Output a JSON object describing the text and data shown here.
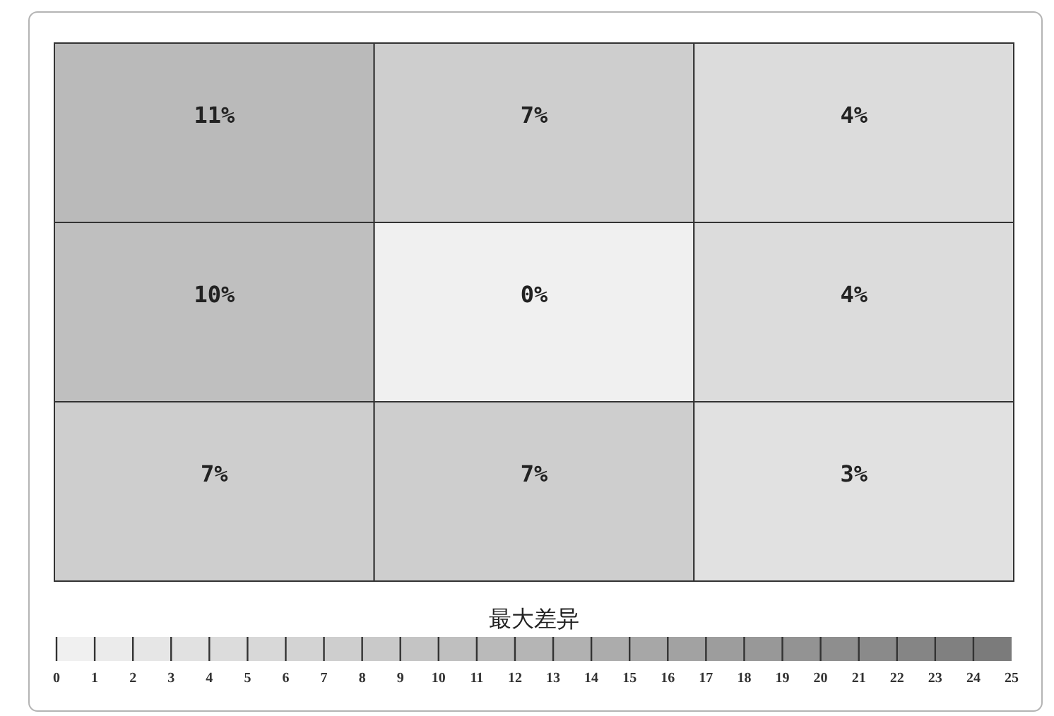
{
  "chart_data": {
    "type": "heatmap",
    "categories": [
      null,
      null,
      null
    ],
    "y_categories": [
      null,
      null,
      null
    ],
    "cells": [
      [
        11,
        7,
        4
      ],
      [
        10,
        0,
        4
      ],
      [
        7,
        7,
        3
      ]
    ],
    "cell_labels": [
      [
        "11%",
        "7%",
        "4%"
      ],
      [
        "10%",
        "0%",
        "4%"
      ],
      [
        "7%",
        "7%",
        "3%"
      ]
    ],
    "clabel": "最大差异",
    "clim": [
      0,
      25
    ],
    "cticks": [
      0,
      1,
      2,
      3,
      4,
      5,
      6,
      7,
      8,
      9,
      10,
      11,
      12,
      13,
      14,
      15,
      16,
      17,
      18,
      19,
      20,
      21,
      22,
      23,
      24,
      25
    ]
  }
}
